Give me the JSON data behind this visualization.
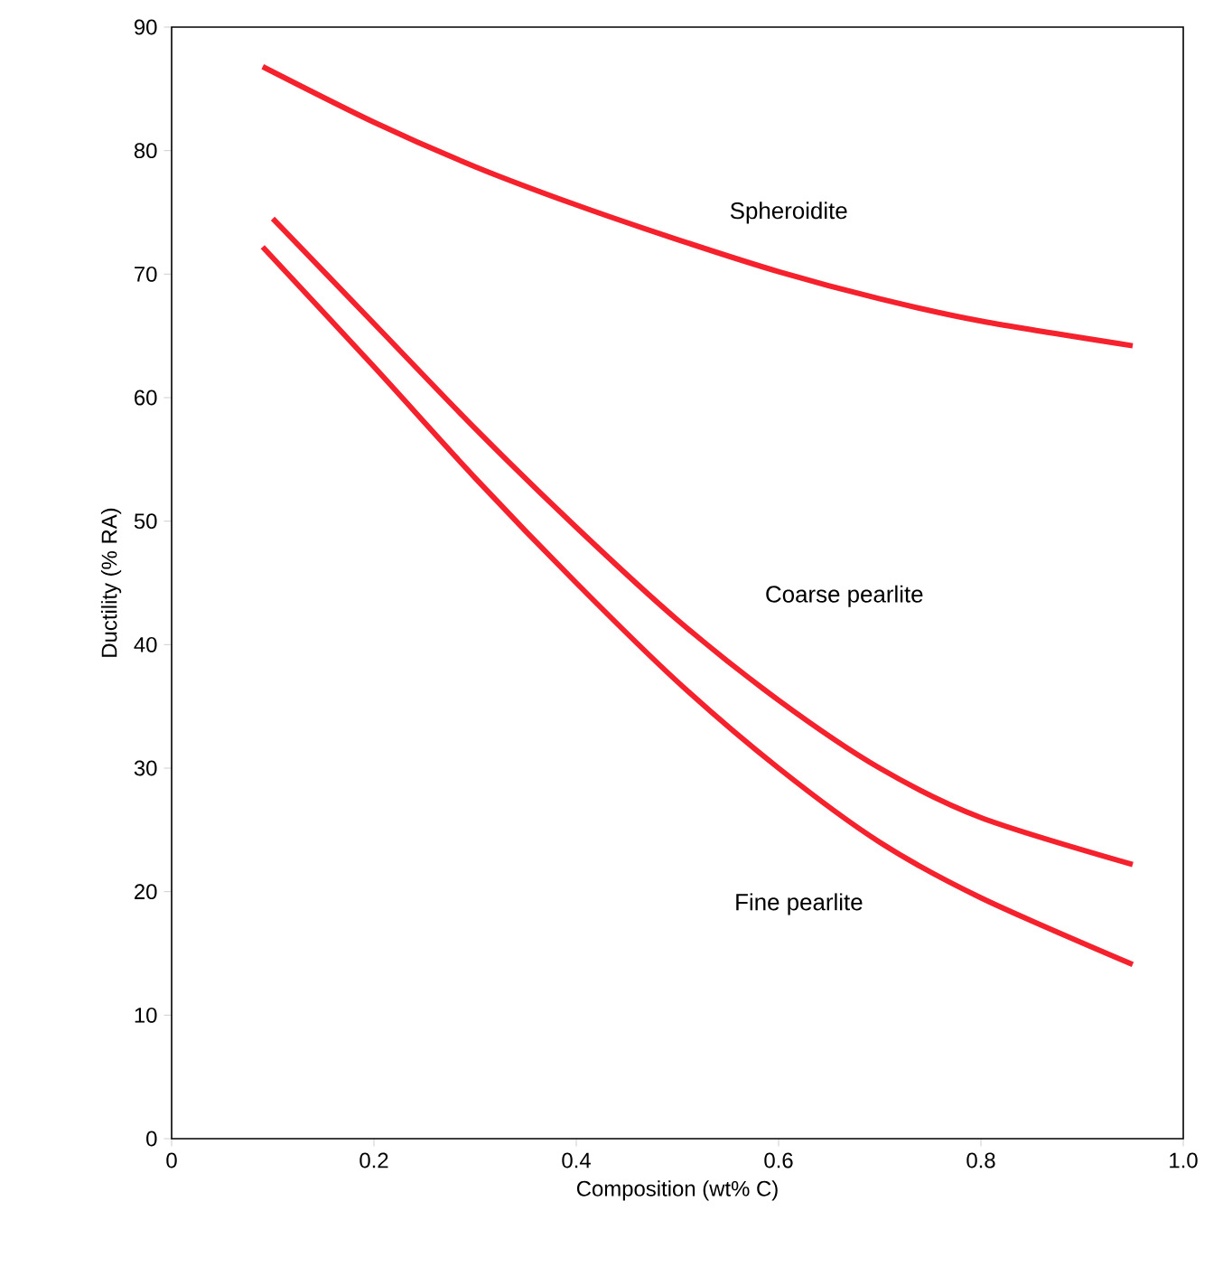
{
  "chart_data": {
    "type": "line",
    "xlabel": "Composition (wt% C)",
    "ylabel": "Ductility (% RA)",
    "xlim": [
      0,
      1.0
    ],
    "ylim": [
      0,
      90
    ],
    "xticks": [
      0,
      0.2,
      0.4,
      0.6,
      0.8,
      {
        "value": 1.0,
        "label": "1.0"
      }
    ],
    "yticks": [
      0,
      10,
      20,
      30,
      40,
      50,
      60,
      70,
      80,
      90
    ],
    "marker": "none",
    "line_style": "solid",
    "series": [
      {
        "color": "#f5222e",
        "x": [
          0.09,
          0.2,
          0.3,
          0.4,
          0.5,
          0.6,
          0.7,
          0.8,
          0.95
        ],
        "values": [
          86.8,
          82.3,
          78.7,
          75.6,
          72.8,
          70.2,
          68,
          66.2,
          64.2
        ]
      },
      {
        "color": "#f5222e",
        "x": [
          0.1,
          0.2,
          0.3,
          0.4,
          0.5,
          0.6,
          0.7,
          0.8,
          0.95
        ],
        "values": [
          74.5,
          66,
          57.5,
          49.5,
          42,
          35.5,
          30,
          26,
          22.2
        ]
      },
      {
        "color": "#f5222e",
        "x": [
          0.09,
          0.2,
          0.3,
          0.4,
          0.5,
          0.6,
          0.7,
          0.8,
          0.95
        ],
        "values": [
          72.2,
          62.5,
          53.5,
          45,
          37,
          30,
          24,
          19.5,
          14.1
        ]
      }
    ],
    "annotations": [
      "Spheroidite",
      "Coarse pearlite",
      "Fine pearlite"
    ]
  }
}
